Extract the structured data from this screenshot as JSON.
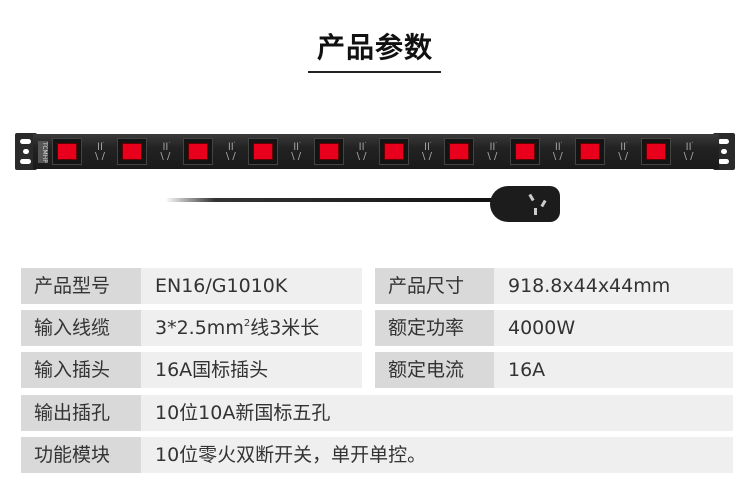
{
  "title": "产品参数",
  "product": {
    "logo_text": "TCMHP",
    "switch_color": "#e8001c",
    "outlet_count": 10
  },
  "specs": [
    {
      "label": "产品型号",
      "value": "EN16/G1010K"
    },
    {
      "label": "产品尺寸",
      "value": "918.8x44x44mm"
    },
    {
      "label": "输入线缆",
      "value_pre": "3*2.5mm",
      "value_sup": "2",
      "value_post": "线3米长"
    },
    {
      "label": "额定功率",
      "value": "4000W"
    },
    {
      "label": "输入插头",
      "value": "16A国标插头"
    },
    {
      "label": "额定电流",
      "value": "16A"
    },
    {
      "label": "输出插孔",
      "value": "10位10A新国标五孔"
    },
    {
      "label": "功能模块",
      "value": "10位零火双断开关，单开单控。"
    }
  ]
}
